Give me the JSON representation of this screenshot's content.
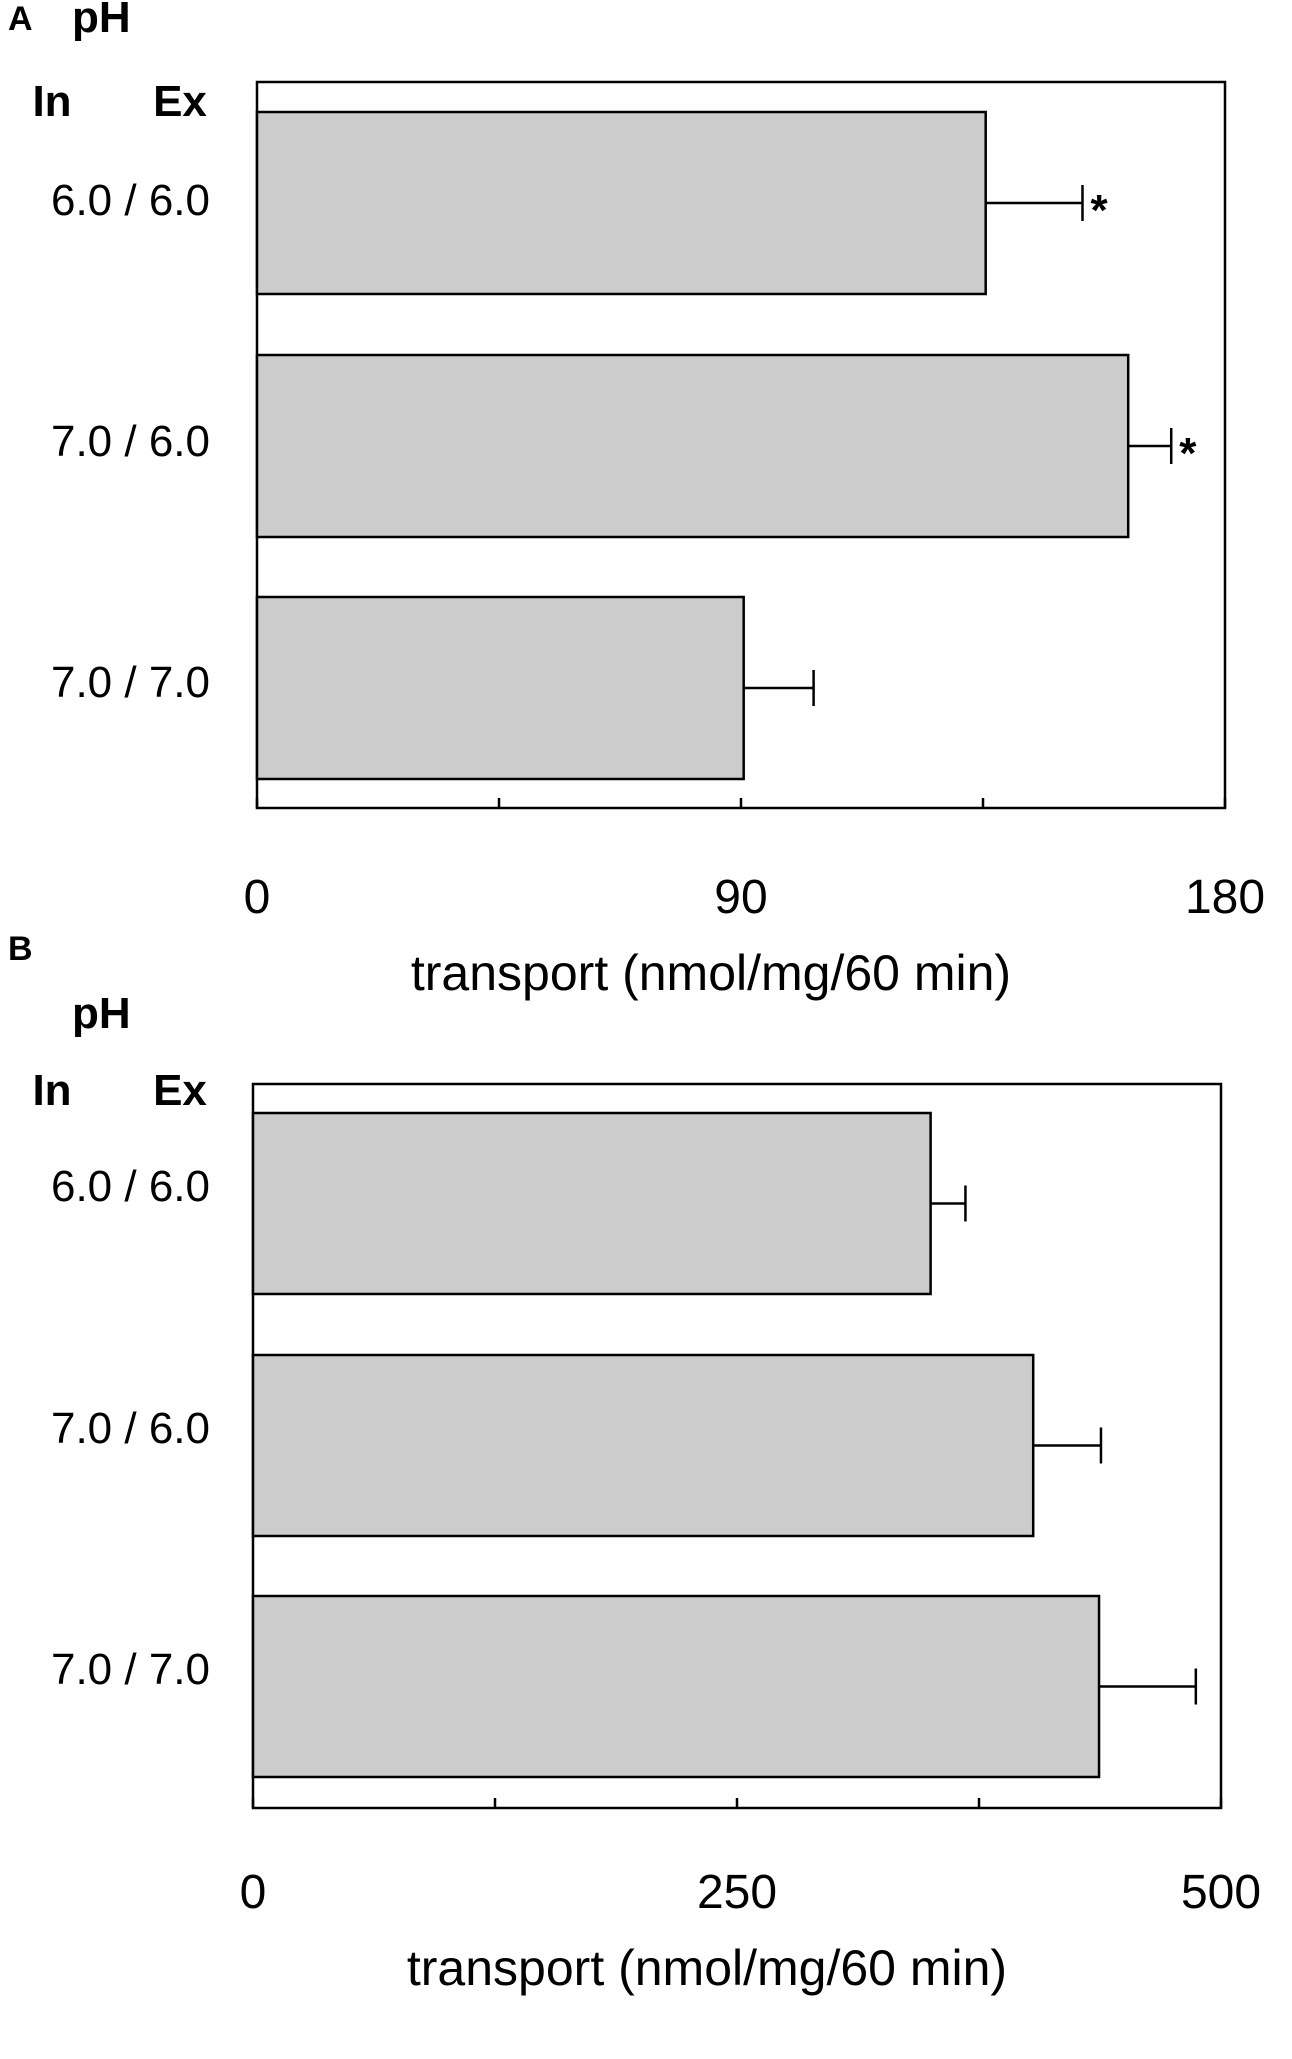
{
  "chart_data": [
    {
      "type": "bar",
      "orientation": "horizontal",
      "panel_label": "A",
      "group_header": "pH",
      "column_headers": [
        "In",
        "Ex"
      ],
      "categories": [
        "6.0  / 6.0",
        "7.0  / 6.0",
        "7.0  / 7.0"
      ],
      "values": [
        135.5,
        162,
        90.5
      ],
      "errors": [
        18,
        8,
        13
      ],
      "significance": [
        "*",
        "*",
        ""
      ],
      "xlabel": "transport (nmol/mg/60 min)",
      "xlim": [
        0,
        180
      ],
      "xticks": [
        0,
        45,
        90,
        135,
        180
      ],
      "xtick_labels": [
        "0",
        "",
        "90",
        "",
        "180"
      ],
      "bar_color": "#cccccc"
    },
    {
      "type": "bar",
      "orientation": "horizontal",
      "panel_label": "B",
      "group_header": "pH",
      "column_headers": [
        "In",
        "Ex"
      ],
      "categories": [
        "6.0  / 6.0",
        "7.0  / 6.0",
        "7.0  / 7.0"
      ],
      "values": [
        350,
        403,
        437
      ],
      "errors": [
        18,
        35,
        50
      ],
      "significance": [
        "",
        "",
        ""
      ],
      "xlabel": "transport (nmol/mg/60 min)",
      "xlim": [
        0,
        500
      ],
      "xticks": [
        0,
        125,
        250,
        375,
        500
      ],
      "xtick_labels": [
        "0",
        "",
        "250",
        "",
        "500"
      ],
      "bar_color": "#cccccc"
    }
  ]
}
